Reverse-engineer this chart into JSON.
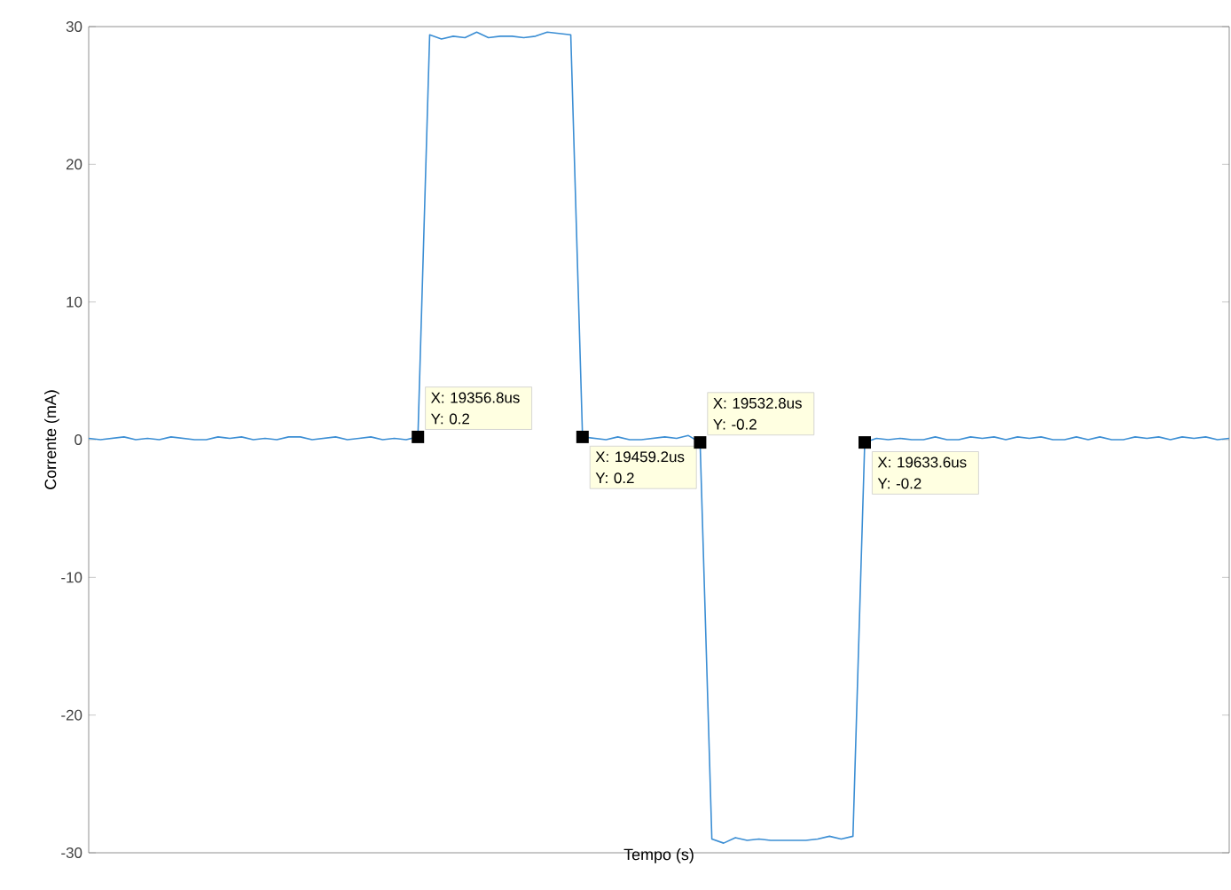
{
  "chart_data": {
    "type": "line",
    "xlabel": "Tempo (s)",
    "ylabel": "Corrente (mA)",
    "ylim": [
      -30,
      30
    ],
    "yticks": [
      -30,
      -20,
      -10,
      0,
      10,
      20,
      30
    ],
    "tick_labels": "y",
    "categories": [
      null,
      null,
      null,
      null,
      null,
      null,
      null,
      null,
      null,
      null,
      null,
      null,
      null,
      null,
      null,
      null,
      null,
      null,
      null,
      null,
      null,
      null,
      null,
      null,
      null,
      null,
      null,
      null,
      null,
      null,
      null,
      null,
      null,
      null,
      null,
      null,
      null,
      null,
      null,
      null,
      null,
      null,
      null,
      null,
      null,
      null,
      null,
      null,
      null,
      null,
      null,
      null,
      null,
      null,
      null,
      null,
      null,
      null,
      null,
      null,
      null,
      null,
      null,
      null,
      null,
      null,
      null,
      null,
      null,
      null,
      null,
      null,
      null,
      null,
      null,
      null,
      null,
      null,
      null,
      null,
      null,
      null,
      null,
      null,
      null,
      null,
      null,
      null,
      null,
      null,
      null,
      null,
      null,
      null,
      null,
      null,
      null,
      null
    ],
    "series": [
      {
        "color": "#3b8ed4",
        "values": [
          0.1,
          0,
          0.1,
          0.2,
          0,
          0.1,
          0,
          0.2,
          0.1,
          0,
          0,
          0.2,
          0.1,
          0.2,
          0,
          0.1,
          0,
          0.2,
          0.2,
          0,
          0.1,
          0.2,
          0,
          0.1,
          0.2,
          0,
          0.1,
          0,
          0.2,
          29.4,
          29.1,
          29.3,
          29.2,
          29.6,
          29.2,
          29.3,
          29.3,
          29.2,
          29.3,
          29.6,
          29.5,
          29.4,
          0.2,
          0.1,
          0,
          0.2,
          0,
          0,
          0.1,
          0.2,
          0.1,
          0.3,
          -0.2,
          -29.0,
          -29.3,
          -28.9,
          -29.1,
          -29.0,
          -29.1,
          -29.1,
          -29.1,
          -29.1,
          -29.0,
          -28.8,
          -29.0,
          -28.8,
          -0.2,
          0.1,
          0,
          0.1,
          0,
          0,
          0.2,
          0,
          0,
          0.2,
          0.1,
          0.2,
          0,
          0.2,
          0.1,
          0.2,
          0,
          0,
          0.2,
          0,
          0.2,
          0,
          0,
          0.2,
          0.1,
          0.2,
          0,
          0.2,
          0.1,
          0.2,
          0,
          0.1
        ]
      }
    ],
    "annotations": [
      "X: 19356.8us Y: 0.2",
      "X: 19459.2us Y: 0.2",
      "X: 19532.8us Y: -0.2",
      "X: 19633.6us Y: -0.2"
    ]
  }
}
